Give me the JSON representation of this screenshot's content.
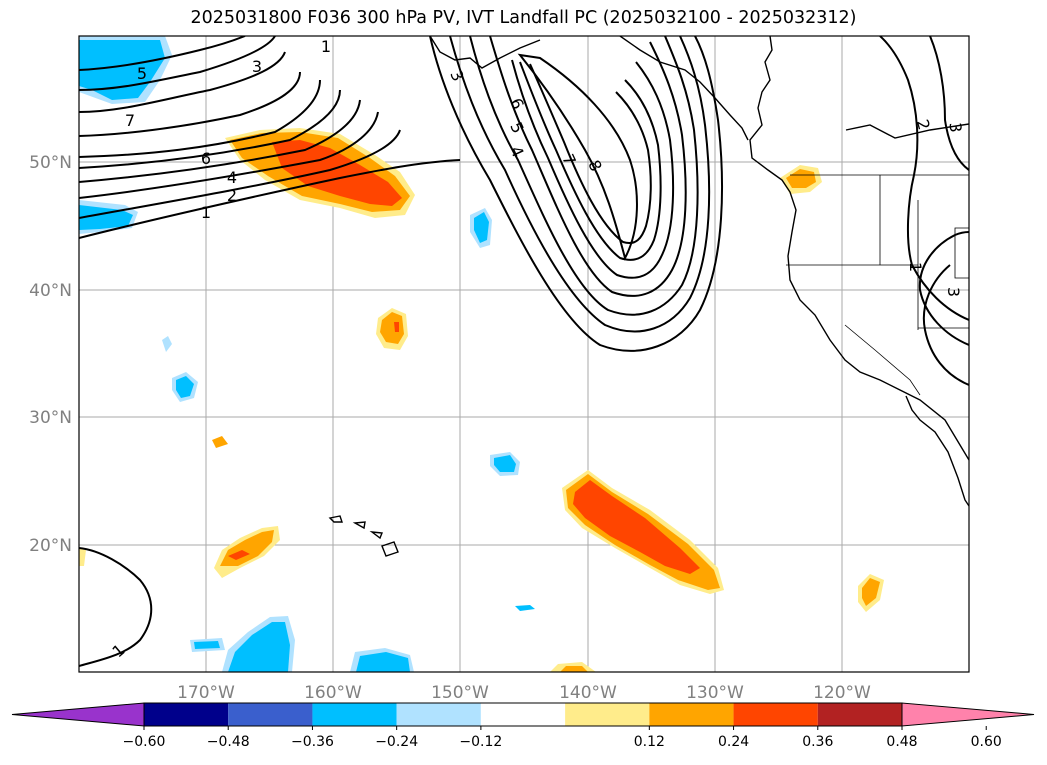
{
  "title": "2025031800 F036 300 hPa PV, IVT Landfall PC (2025032100 - 2025032312)",
  "map": {
    "lat_labels": [
      "50°N",
      "40°N",
      "30°N",
      "20°N"
    ],
    "lon_labels": [
      "170°W",
      "160°W",
      "150°W",
      "140°W",
      "130°W",
      "120°W"
    ],
    "gridline_color": "#aaaaaa",
    "label_color": "#808080"
  },
  "contour_labels": [
    "1",
    "3",
    "5",
    "7",
    "6",
    "4",
    "2",
    "1",
    "3",
    "6",
    "5",
    "4",
    "7",
    "8",
    "2",
    "3",
    "1",
    "3",
    "1"
  ],
  "colorbar": {
    "ticks": [
      "−0.60",
      "−0.48",
      "−0.36",
      "−0.24",
      "−0.12",
      "0.12",
      "0.24",
      "0.36",
      "0.48",
      "0.60"
    ],
    "colors": [
      "#9933cc",
      "#00008b",
      "#3a5fcd",
      "#00bfff",
      "#b0e2ff",
      "#ffffff",
      "#ffec8b",
      "#ffa500",
      "#ff4500",
      "#b22222",
      "#ff82ab"
    ]
  }
}
